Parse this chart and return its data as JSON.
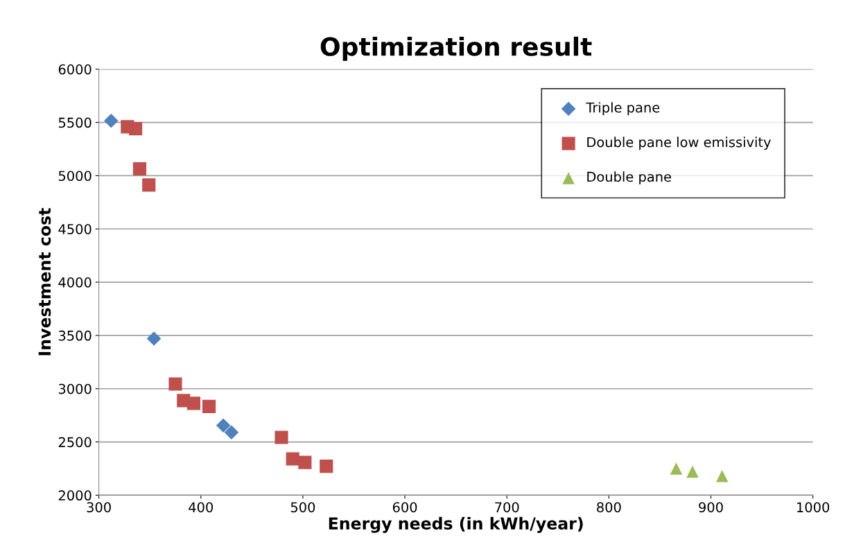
{
  "chart_data": {
    "type": "scatter",
    "title": "Optimization result",
    "xlabel": "Energy needs (in kWh/year)",
    "ylabel": "Investment cost",
    "xlim": [
      300,
      1000
    ],
    "xticks": [
      300,
      400,
      500,
      600,
      700,
      800,
      900,
      1000
    ],
    "ylim": [
      2000,
      6000
    ],
    "yticks": [
      2000,
      2500,
      3000,
      3500,
      4000,
      4500,
      5000,
      5500,
      6000
    ],
    "grid": "y",
    "legend": "top right",
    "series": [
      {
        "name": "Triple pane",
        "color": "#4f81bd",
        "marker": "diamond",
        "x": [
          312,
          354,
          422,
          430
        ],
        "values": [
          5515,
          3470,
          2655,
          2590
        ]
      },
      {
        "name": "Double pane low emissivity",
        "color": "#c0504d",
        "marker": "square",
        "x": [
          328,
          336,
          340,
          349,
          375,
          383,
          393,
          408,
          479,
          490,
          502,
          523
        ],
        "values": [
          5459,
          5441,
          5065,
          4913,
          3044,
          2888,
          2862,
          2833,
          2543,
          2341,
          2308,
          2272
        ]
      },
      {
        "name": "Double pane",
        "color": "#9bbb59",
        "marker": "triangle",
        "x": [
          866,
          882,
          911
        ],
        "values": [
          2250,
          2220,
          2180
        ]
      }
    ]
  }
}
